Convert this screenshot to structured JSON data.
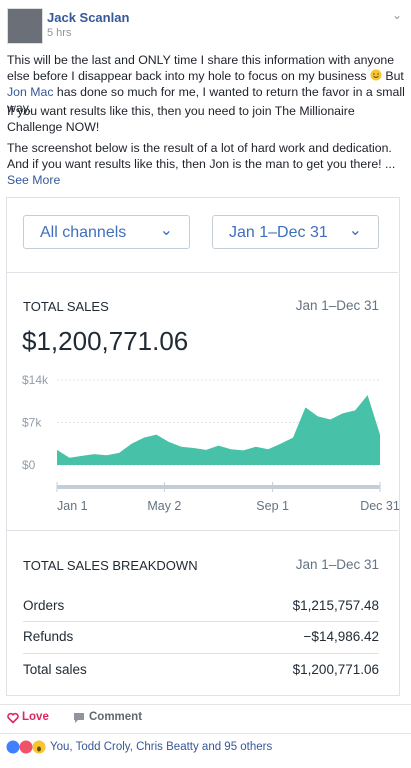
{
  "post": {
    "author": "Jack Scanlan",
    "time": "5 hrs",
    "p1_a": "This will be the last and ONLY time I share this information with anyone else before I disappear back into my hole to focus on my business",
    "p1_b": " But ",
    "p1_link": "Jon Mac",
    "p1_c": " has done so much for me, I wanted to return the favor in a small way.",
    "p2": "If you want results like this, then you need to join The Millionaire Challenge NOW!",
    "p3": "The screenshot below is the result of a lot of hard work and dedication. And if you want results like this, then Jon is the man to get you there! ...",
    "see_more": "See More"
  },
  "dashboard": {
    "channel_select": "All channels",
    "date_select": "Jan 1–Dec 31",
    "total_sales": {
      "title": "TOTAL SALES",
      "date": "Jan 1–Dec 31",
      "amount": "$1,200,771.06"
    },
    "breakdown": {
      "title": "TOTAL SALES BREAKDOWN",
      "date": "Jan 1–Dec 31",
      "rows": [
        [
          "Orders",
          "$1,215,757.48"
        ],
        [
          "Refunds",
          "−$14,986.42"
        ],
        [
          "Total sales",
          "$1,200,771.06"
        ]
      ]
    }
  },
  "chart_data": {
    "type": "area",
    "color": "#47c1a8",
    "x": [
      0,
      14,
      28,
      42,
      56,
      70,
      84,
      98,
      112,
      126,
      140,
      154,
      168,
      182,
      196,
      210,
      224,
      238,
      252,
      266,
      280,
      294,
      308,
      322,
      336,
      350,
      364
    ],
    "values": [
      2500,
      1200,
      1500,
      1800,
      1600,
      2000,
      3500,
      4500,
      5000,
      3800,
      3000,
      2800,
      2500,
      3200,
      2600,
      2400,
      3000,
      2600,
      3500,
      4500,
      9500,
      8000,
      7500,
      8500,
      9000,
      11500,
      5000
    ],
    "xlim": [
      0,
      364
    ],
    "xticks": [
      {
        "value": 0,
        "label": "Jan 1"
      },
      {
        "value": 121,
        "label": "May 2"
      },
      {
        "value": 243,
        "label": "Sep 1"
      },
      {
        "value": 364,
        "label": "Dec 31"
      }
    ],
    "ylim": [
      0,
      14000
    ],
    "yticks": [
      {
        "value": 0,
        "label": "$0"
      },
      {
        "value": 7000,
        "label": "$7k"
      },
      {
        "value": 14000,
        "label": "$14k"
      }
    ],
    "grid": true
  },
  "footer": {
    "love": "Love",
    "comment": "Comment",
    "reactions": "You, Todd Croly, Chris Beatty and 95 others"
  }
}
